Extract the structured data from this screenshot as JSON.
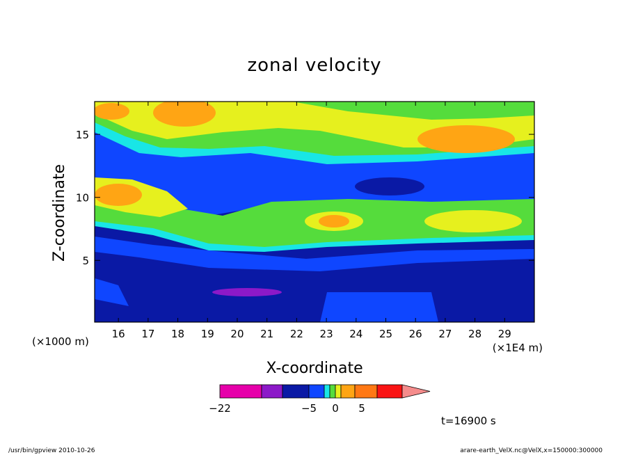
{
  "chart_data": {
    "type": "heatmap",
    "title": "zonal velocity",
    "xlabel": "X-coordinate",
    "ylabel": "Z-coordinate",
    "x_scale_note": "(×1E4 m)",
    "y_scale_note": "(×1000 m)",
    "xlim": [
      15.2,
      30.0
    ],
    "ylim": [
      0.1,
      17.6
    ],
    "x_ticks": [
      "16",
      "17",
      "18",
      "19",
      "20",
      "21",
      "22",
      "23",
      "24",
      "25",
      "26",
      "27",
      "28",
      "29"
    ],
    "y_ticks": [
      "5",
      "10",
      "15"
    ],
    "colorbar": {
      "tick_labels": [
        "−22",
        "−5",
        "0",
        "5"
      ],
      "colors": [
        "#e600aa",
        "#8c19c8",
        "#0a19a5",
        "#0f46ff",
        "#19e6e6",
        "#55dc3c",
        "#e6f01e",
        "#ffa514",
        "#ff7814",
        "#fa1414",
        "#f58c8c"
      ]
    },
    "time_label": "t=16900 s",
    "footer_left": "/usr/bin/gpview   2010-10-26",
    "footer_right": "arare-earth_VelX.nc@VelX,x=150000:300000"
  }
}
